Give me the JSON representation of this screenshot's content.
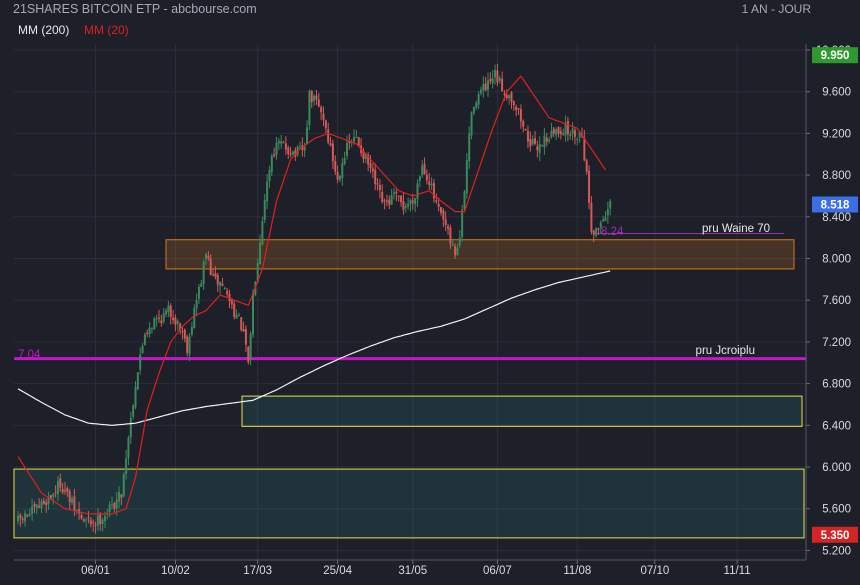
{
  "header": {
    "title": "21SHARES BITCOIN ETP - abcbourse.com",
    "period": "1 AN - JOUR"
  },
  "legend": {
    "ma200_label": "MM (200)",
    "ma20_label": "MM (20)"
  },
  "colors": {
    "background": "#1d1f29",
    "grid": "#2b2e3b",
    "axis_text": "#d8dbe2",
    "candle_up": "#3a8a5c",
    "candle_down": "#d45a5a",
    "ma20": "#e02020",
    "ma200": "#f2f2f2",
    "support_line": "#c218c8",
    "orange_zone": "#d9791e",
    "yellow_zone": "#e8e050",
    "badge_high": "#2e9a2e",
    "badge_last": "#3c6ee8",
    "badge_low": "#d42424"
  },
  "chart_data": {
    "type": "candlestick",
    "x_tick_labels": [
      "06/01",
      "10/02",
      "17/03",
      "25/04",
      "31/05",
      "06/07",
      "11/08",
      "07/10",
      "11/11"
    ],
    "y_tick_labels": [
      "10.000",
      "9.600",
      "9.200",
      "8.800",
      "8.400",
      "8.000",
      "7.600",
      "7.200",
      "6.800",
      "6.400",
      "6.000",
      "5.600",
      "5.200"
    ],
    "ylim": [
      5.15,
      10.1
    ],
    "grid": true,
    "badges": {
      "high": "9.950",
      "last": "8.518",
      "low": "5.350"
    },
    "horizontal_line": {
      "value": 7.04,
      "label": "7.04",
      "text": "pru Jcroiplu"
    },
    "marker": {
      "value": 8.24,
      "label": "8.24",
      "text": "pru Waine 70"
    },
    "zones": [
      {
        "name": "orange",
        "low": 7.9,
        "high": 8.18
      },
      {
        "name": "yellow-mid",
        "low": 6.39,
        "high": 6.68
      },
      {
        "name": "yellow-low",
        "low": 5.32,
        "high": 5.98
      }
    ],
    "anchors": [
      [
        0,
        5.48
      ],
      [
        7,
        5.58
      ],
      [
        14,
        5.72
      ],
      [
        18,
        5.85
      ],
      [
        24,
        5.6
      ],
      [
        28,
        5.48
      ],
      [
        33,
        5.47
      ],
      [
        37,
        5.55
      ],
      [
        40,
        5.62
      ],
      [
        44,
        5.75
      ],
      [
        47,
        6.3
      ],
      [
        50,
        6.8
      ],
      [
        54,
        7.3
      ],
      [
        58,
        7.4
      ],
      [
        62,
        7.45
      ],
      [
        64,
        7.5
      ],
      [
        66,
        7.45
      ],
      [
        70,
        7.3
      ],
      [
        72,
        7.15
      ],
      [
        75,
        7.5
      ],
      [
        78,
        7.8
      ],
      [
        80,
        8.05
      ],
      [
        83,
        7.8
      ],
      [
        87,
        7.75
      ],
      [
        90,
        7.6
      ],
      [
        93,
        7.45
      ],
      [
        95,
        7.35
      ],
      [
        97,
        7.15
      ],
      [
        98,
        6.95
      ],
      [
        100,
        7.65
      ],
      [
        103,
        8.2
      ],
      [
        105,
        8.6
      ],
      [
        108,
        9.0
      ],
      [
        111,
        9.1
      ],
      [
        115,
        9.05
      ],
      [
        118,
        9.0
      ],
      [
        122,
        9.05
      ],
      [
        124,
        9.55
      ],
      [
        127,
        9.5
      ],
      [
        130,
        9.35
      ],
      [
        133,
        9.05
      ],
      [
        136,
        8.75
      ],
      [
        138,
        8.95
      ],
      [
        141,
        9.1
      ],
      [
        144,
        9.15
      ],
      [
        147,
        9.0
      ],
      [
        150,
        8.85
      ],
      [
        153,
        8.65
      ],
      [
        156,
        8.5
      ],
      [
        160,
        8.6
      ],
      [
        164,
        8.5
      ],
      [
        168,
        8.55
      ],
      [
        172,
        8.9
      ],
      [
        175,
        8.75
      ],
      [
        178,
        8.5
      ],
      [
        182,
        8.3
      ],
      [
        184,
        8.15
      ],
      [
        186,
        8.05
      ],
      [
        188,
        8.2
      ],
      [
        190,
        8.65
      ],
      [
        192,
        9.2
      ],
      [
        194,
        9.5
      ],
      [
        197,
        9.6
      ],
      [
        200,
        9.65
      ],
      [
        203,
        9.75
      ],
      [
        207,
        9.6
      ],
      [
        210,
        9.55
      ],
      [
        213,
        9.4
      ],
      [
        216,
        9.2
      ],
      [
        220,
        9.05
      ],
      [
        224,
        9.15
      ],
      [
        228,
        9.2
      ],
      [
        232,
        9.25
      ],
      [
        236,
        9.2
      ],
      [
        240,
        9.2
      ],
      [
        242,
        8.8
      ],
      [
        244,
        8.3
      ],
      [
        246,
        8.25
      ],
      [
        249,
        8.4
      ],
      [
        252,
        8.5
      ]
    ],
    "ma20_anchors": [
      [
        0,
        6.1
      ],
      [
        10,
        5.75
      ],
      [
        20,
        5.6
      ],
      [
        30,
        5.55
      ],
      [
        40,
        5.55
      ],
      [
        46,
        5.6
      ],
      [
        50,
        5.9
      ],
      [
        55,
        6.55
      ],
      [
        60,
        6.9
      ],
      [
        65,
        7.2
      ],
      [
        70,
        7.35
      ],
      [
        75,
        7.45
      ],
      [
        80,
        7.5
      ],
      [
        86,
        7.65
      ],
      [
        92,
        7.6
      ],
      [
        98,
        7.55
      ],
      [
        104,
        7.9
      ],
      [
        110,
        8.55
      ],
      [
        116,
        8.95
      ],
      [
        120,
        9.05
      ],
      [
        126,
        9.15
      ],
      [
        132,
        9.2
      ],
      [
        138,
        9.15
      ],
      [
        144,
        9.1
      ],
      [
        150,
        8.95
      ],
      [
        156,
        8.8
      ],
      [
        162,
        8.65
      ],
      [
        168,
        8.6
      ],
      [
        175,
        8.65
      ],
      [
        180,
        8.55
      ],
      [
        186,
        8.45
      ],
      [
        190,
        8.45
      ],
      [
        196,
        8.85
      ],
      [
        202,
        9.25
      ],
      [
        208,
        9.6
      ],
      [
        214,
        9.75
      ],
      [
        220,
        9.55
      ],
      [
        226,
        9.35
      ],
      [
        232,
        9.3
      ],
      [
        238,
        9.25
      ],
      [
        244,
        9.05
      ],
      [
        250,
        8.85
      ]
    ],
    "ma200_anchors": [
      [
        0,
        6.75
      ],
      [
        10,
        6.62
      ],
      [
        20,
        6.5
      ],
      [
        30,
        6.42
      ],
      [
        40,
        6.4
      ],
      [
        50,
        6.42
      ],
      [
        60,
        6.48
      ],
      [
        70,
        6.54
      ],
      [
        80,
        6.58
      ],
      [
        90,
        6.61
      ],
      [
        100,
        6.64
      ],
      [
        110,
        6.74
      ],
      [
        120,
        6.86
      ],
      [
        130,
        6.97
      ],
      [
        140,
        7.07
      ],
      [
        150,
        7.16
      ],
      [
        160,
        7.24
      ],
      [
        170,
        7.3
      ],
      [
        180,
        7.35
      ],
      [
        190,
        7.42
      ],
      [
        200,
        7.52
      ],
      [
        210,
        7.62
      ],
      [
        220,
        7.7
      ],
      [
        230,
        7.77
      ],
      [
        240,
        7.82
      ],
      [
        252,
        7.88
      ]
    ]
  }
}
